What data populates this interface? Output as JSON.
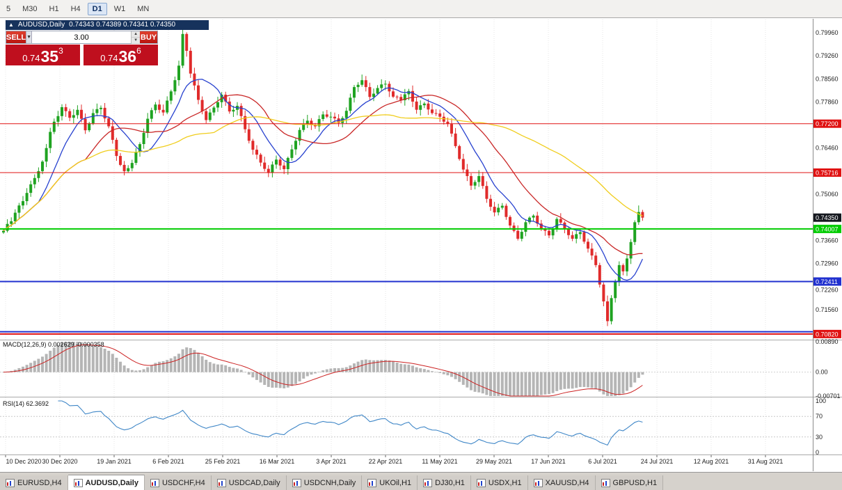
{
  "toolbar": {
    "timeframes": [
      {
        "label": "5",
        "active": false
      },
      {
        "label": "M30",
        "active": false
      },
      {
        "label": "H1",
        "active": false
      },
      {
        "label": "H4",
        "active": false
      },
      {
        "label": "D1",
        "active": true
      },
      {
        "label": "W1",
        "active": false
      },
      {
        "label": "MN",
        "active": false
      }
    ]
  },
  "chart_header": {
    "collapse_icon": "▲",
    "symbol": "AUDUSD,Daily",
    "ohlc": "0.74343 0.74389 0.74341 0.74350"
  },
  "trade_panel": {
    "sell_label": "SELL",
    "buy_label": "BUY",
    "volume": "3.00",
    "dropdown_icon": "▼",
    "spinner_up": "▲",
    "spinner_down": "▼",
    "sell_price": {
      "prefix": "0.74",
      "big": "35",
      "sup": "3"
    },
    "buy_price": {
      "prefix": "0.74",
      "big": "36",
      "sup": "6"
    }
  },
  "tabs": [
    {
      "label": "EURUSD,H4",
      "active": false
    },
    {
      "label": "AUDUSD,Daily",
      "active": true
    },
    {
      "label": "USDCHF,H4",
      "active": false
    },
    {
      "label": "USDCAD,Daily",
      "active": false
    },
    {
      "label": "USDCNH,Daily",
      "active": false
    },
    {
      "label": "UKOil,H1",
      "active": false
    },
    {
      "label": "DJ30,H1",
      "active": false
    },
    {
      "label": "USDX,H1",
      "active": false
    },
    {
      "label": "XAUUSD,H4",
      "active": false
    },
    {
      "label": "GBPUSD,H1",
      "active": false
    }
  ],
  "chart_data": {
    "type": "candlestick",
    "title": "AUDUSD,Daily",
    "x_labels": [
      "10 Dec 2020",
      "30 Dec 2020",
      "19 Jan 2021",
      "6 Feb 2021",
      "25 Feb 2021",
      "16 Mar 2021",
      "3 Apr 2021",
      "22 Apr 2021",
      "11 May 2021",
      "29 May 2021",
      "17 Jun 2021",
      "6 Jul 2021",
      "24 Jul 2021",
      "12 Aug 2021",
      "31 Aug 2021"
    ],
    "price_axis": {
      "min": 0.7067,
      "max": 0.8036,
      "decimals": 5,
      "ticks": [
        0.7996,
        0.7926,
        0.7856,
        0.7786,
        0.7646,
        0.7506,
        0.7366,
        0.7296,
        0.7226,
        0.7156
      ]
    },
    "candles": {
      "first_open": 0.739,
      "up_color": "#1fa321",
      "down_color": "#e02b2b",
      "closes": [
        0.7395,
        0.7416,
        0.7424,
        0.745,
        0.7472,
        0.7485,
        0.751,
        0.7536,
        0.7555,
        0.7576,
        0.7605,
        0.7646,
        0.7695,
        0.7726,
        0.7743,
        0.777,
        0.7758,
        0.7738,
        0.7746,
        0.7762,
        0.7735,
        0.77,
        0.7721,
        0.7752,
        0.7764,
        0.7768,
        0.7736,
        0.7712,
        0.7671,
        0.7622,
        0.7595,
        0.7576,
        0.7585,
        0.7601,
        0.7634,
        0.7658,
        0.7692,
        0.7735,
        0.7761,
        0.7778,
        0.7762,
        0.7754,
        0.779,
        0.7818,
        0.7852,
        0.7896,
        0.7992,
        0.7941,
        0.7872,
        0.7836,
        0.7792,
        0.7758,
        0.7731,
        0.7754,
        0.7769,
        0.7785,
        0.7808,
        0.7787,
        0.7757,
        0.7762,
        0.7774,
        0.7743,
        0.7703,
        0.7668,
        0.7641,
        0.7626,
        0.7602,
        0.7583,
        0.7572,
        0.7596,
        0.7611,
        0.7593,
        0.7582,
        0.7616,
        0.7642,
        0.7668,
        0.7701,
        0.7719,
        0.7729,
        0.7717,
        0.7712,
        0.7734,
        0.7748,
        0.7741,
        0.7741,
        0.7736,
        0.7722,
        0.7737,
        0.7759,
        0.7799,
        0.7831,
        0.7838,
        0.7852,
        0.7831,
        0.7801,
        0.7811,
        0.7828,
        0.7839,
        0.7841,
        0.7818,
        0.7802,
        0.7801,
        0.7791,
        0.7809,
        0.7819,
        0.7787,
        0.7762,
        0.7776,
        0.7781,
        0.7763,
        0.7752,
        0.7751,
        0.7741,
        0.7726,
        0.7719,
        0.769,
        0.7652,
        0.7613,
        0.7581,
        0.7561,
        0.7532,
        0.7543,
        0.7561,
        0.7531,
        0.7492,
        0.7468,
        0.7451,
        0.7465,
        0.7471,
        0.7437,
        0.7411,
        0.7395,
        0.7371,
        0.7392,
        0.7421,
        0.7435,
        0.7441,
        0.7417,
        0.7401,
        0.7395,
        0.7381,
        0.7402,
        0.7431,
        0.742,
        0.7401,
        0.7382,
        0.7371,
        0.7385,
        0.7391,
        0.7362,
        0.7341,
        0.732,
        0.7291,
        0.7232,
        0.7181,
        0.7121,
        0.7191,
        0.7241,
        0.7291,
        0.7272,
        0.7311,
        0.7361,
        0.7421,
        0.7452,
        0.7435
      ],
      "overrides": {
        "46": {
          "high": 0.8007
        },
        "155": {
          "low": 0.7106
        },
        "163": {
          "high": 0.7472
        }
      }
    },
    "moving_averages": [
      {
        "name": "ma-fast-line",
        "period": 10,
        "color": "#2741cf"
      },
      {
        "name": "ma-medium-line",
        "period": 22,
        "color": "#c92727"
      },
      {
        "name": "ma-slow-line",
        "period": 55,
        "color": "#f0cd1c"
      }
    ],
    "hlines": [
      {
        "price": 0.772,
        "color": "#e01212",
        "width": 1,
        "badge": true
      },
      {
        "price": 0.75716,
        "color": "#e01212",
        "width": 1,
        "badge": true
      },
      {
        "price": 0.74007,
        "color": "#00cc00",
        "width": 2,
        "badge": true
      },
      {
        "price": 0.72411,
        "color": "#2030cf",
        "width": 2,
        "badge": true
      },
      {
        "price": 0.7089,
        "color": "#2030cf",
        "width": 2,
        "badge": false
      },
      {
        "price": 0.7082,
        "color": "#e01212",
        "width": 2,
        "badge": true
      }
    ],
    "current_price": {
      "value": 0.7435,
      "badge_color": "#15181f"
    },
    "macd": {
      "label": "MACD(12,26,9) 0.002629 -0.000358",
      "fast": 12,
      "slow": 26,
      "signal": 9,
      "histogram_color": "#b5b5b5",
      "signal_color": "#cc2222",
      "axis_ticks": [
        {
          "value": 0.0089,
          "label": "0.00890"
        },
        {
          "value": 0,
          "label": "0.00"
        },
        {
          "value": -0.00701,
          "label": "-0.00701"
        }
      ]
    },
    "rsi": {
      "label": "RSI(14) 62.3692",
      "period": 14,
      "color": "#3e86c7",
      "levels": [
        70,
        30
      ],
      "axis_ticks": [
        100,
        70,
        30,
        0
      ]
    }
  }
}
